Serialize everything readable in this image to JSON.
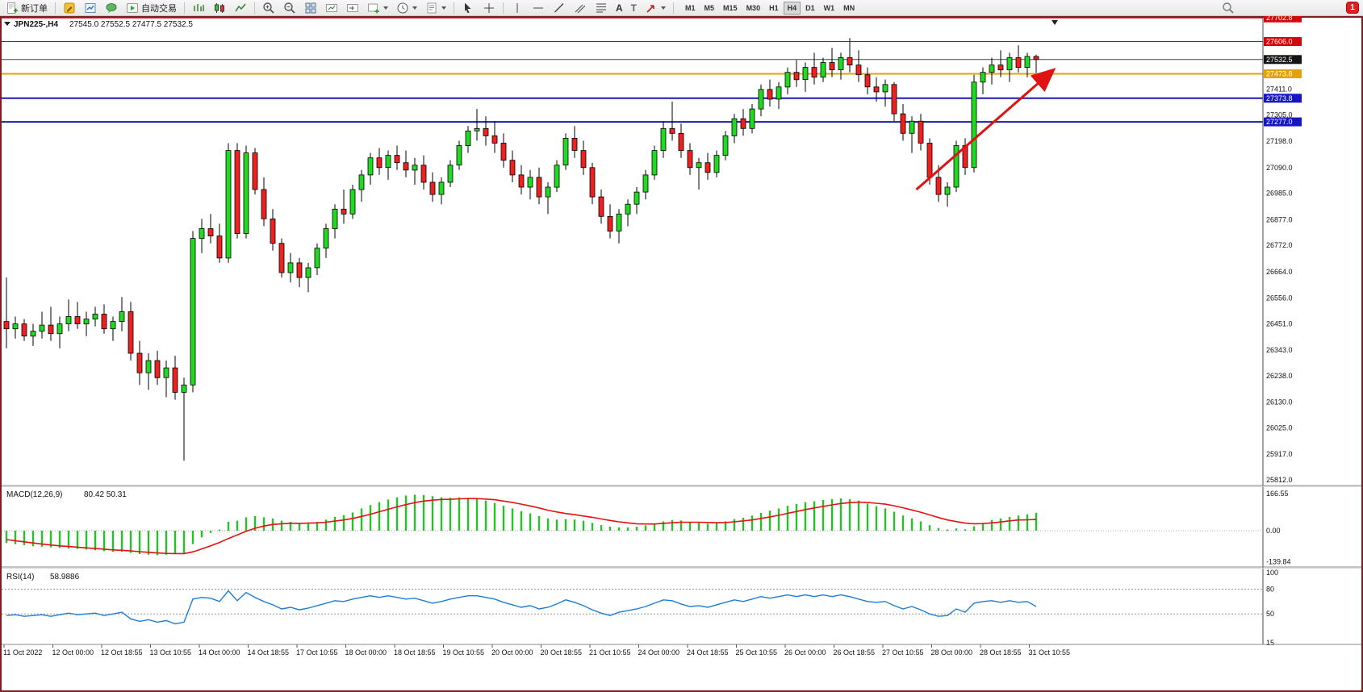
{
  "toolbar": {
    "new_order_label": "新订单",
    "autotrade_label": "自动交易",
    "text_tool_glyph": "A",
    "label_tool_glyph": "T",
    "timeframes": [
      "M1",
      "M5",
      "M15",
      "M30",
      "H1",
      "H4",
      "D1",
      "W1",
      "MN"
    ],
    "active_timeframe": "H4",
    "notification_count": "1"
  },
  "chart": {
    "title": "JPN225-,H4",
    "ohlc_line": "27545.0 27552.5 27477.5 27532.5",
    "macd_label": "MACD(12,26,9)",
    "macd_values": "80.42 50.31",
    "rsi_label": "RSI(14)",
    "rsi_value": "58.9886"
  },
  "chart_data": {
    "type": "candlestick",
    "symbol": "JPN225-",
    "timeframe": "H4",
    "last_ohlc": {
      "open": 27545.0,
      "high": 27552.5,
      "low": 27477.5,
      "close": 27532.5
    },
    "colors": {
      "up": "#21d921",
      "down": "#ef2020",
      "macd_hist": "#27c127",
      "macd_signal": "#e51212",
      "rsi": "#1d7dd4",
      "arrow": "#e11212"
    },
    "price_axis": {
      "gridlines": [
        {
          "label": "27411.0",
          "price": 27411.0
        },
        {
          "label": "27305.0",
          "price": 27305.0
        },
        {
          "label": "27198.0",
          "price": 27198.0
        },
        {
          "label": "27090.0",
          "price": 27090.0
        },
        {
          "label": "26985.0",
          "price": 26985.0
        },
        {
          "label": "26877.0",
          "price": 26877.0
        },
        {
          "label": "26772.0",
          "price": 26772.0
        },
        {
          "label": "26664.0",
          "price": 26664.0
        },
        {
          "label": "26556.0",
          "price": 26556.0
        },
        {
          "label": "26451.0",
          "price": 26451.0
        },
        {
          "label": "26343.0",
          "price": 26343.0
        },
        {
          "label": "26238.0",
          "price": 26238.0
        },
        {
          "label": "26130.0",
          "price": 26130.0
        },
        {
          "label": "26025.0",
          "price": 26025.0
        },
        {
          "label": "25917.0",
          "price": 25917.0
        },
        {
          "label": "25812.0",
          "price": 25812.0
        }
      ],
      "markers": [
        {
          "label": "27702.8",
          "price": 27702.8,
          "bg": "#d40808",
          "fg": "#ffffff"
        },
        {
          "label": "27606.0",
          "price": 27606.0,
          "bg": "#d40808",
          "fg": "#ffffff"
        },
        {
          "label": "27532.5",
          "price": 27532.5,
          "bg": "#141414",
          "fg": "#ffffff"
        },
        {
          "label": "27473.8",
          "price": 27473.8,
          "bg": "#e8a00a",
          "fg": "#ffffff"
        },
        {
          "label": "27373.8",
          "price": 27373.8,
          "bg": "#1616c8",
          "fg": "#ffffff"
        },
        {
          "label": "27277.0",
          "price": 27277.0,
          "bg": "#1616c8",
          "fg": "#ffffff"
        }
      ]
    },
    "hlines": [
      {
        "price": 27702.8,
        "color": "#cc0000",
        "width": 1
      },
      {
        "price": 27606.0,
        "color": "#cc0000",
        "width": 1
      },
      {
        "price": 27532.5,
        "color": "#444444",
        "width": 1
      },
      {
        "price": 27473.8,
        "color": "#e8a00a",
        "width": 2
      },
      {
        "price": 27373.8,
        "color": "#1818b4",
        "width": 2
      },
      {
        "price": 27277.0,
        "color": "#1818b4",
        "width": 2
      }
    ],
    "arrow": {
      "from_index": 102.5,
      "from_price": 27000,
      "to_index": 117.8,
      "to_price": 27485
    },
    "candles": [
      [
        26460,
        26640,
        26350,
        26430
      ],
      [
        26430,
        26480,
        26390,
        26450
      ],
      [
        26450,
        26470,
        26380,
        26400
      ],
      [
        26400,
        26450,
        26360,
        26420
      ],
      [
        26420,
        26500,
        26390,
        26445
      ],
      [
        26445,
        26520,
        26380,
        26410
      ],
      [
        26410,
        26480,
        26350,
        26450
      ],
      [
        26450,
        26550,
        26420,
        26480
      ],
      [
        26480,
        26540,
        26430,
        26450
      ],
      [
        26450,
        26500,
        26400,
        26470
      ],
      [
        26470,
        26520,
        26440,
        26490
      ],
      [
        26490,
        26530,
        26410,
        26430
      ],
      [
        26430,
        26480,
        26380,
        26460
      ],
      [
        26460,
        26560,
        26420,
        26500
      ],
      [
        26500,
        26540,
        26300,
        26330
      ],
      [
        26330,
        26380,
        26200,
        26250
      ],
      [
        26250,
        26330,
        26180,
        26300
      ],
      [
        26300,
        26340,
        26200,
        26230
      ],
      [
        26230,
        26300,
        26150,
        26270
      ],
      [
        26270,
        26320,
        26140,
        26170
      ],
      [
        26170,
        26230,
        25890,
        26200
      ],
      [
        26200,
        26830,
        26170,
        26800
      ],
      [
        26800,
        26880,
        26740,
        26840
      ],
      [
        26840,
        26900,
        26780,
        26810
      ],
      [
        26810,
        26860,
        26700,
        26720
      ],
      [
        26720,
        27190,
        26700,
        27160
      ],
      [
        27160,
        27190,
        26800,
        26820
      ],
      [
        26820,
        27180,
        26800,
        27150
      ],
      [
        27150,
        27170,
        26980,
        27000
      ],
      [
        27000,
        27050,
        26850,
        26880
      ],
      [
        26880,
        26920,
        26750,
        26780
      ],
      [
        26780,
        26800,
        26640,
        26660
      ],
      [
        26660,
        26740,
        26620,
        26700
      ],
      [
        26700,
        26720,
        26600,
        26640
      ],
      [
        26640,
        26700,
        26580,
        26680
      ],
      [
        26680,
        26780,
        26650,
        26760
      ],
      [
        26760,
        26860,
        26720,
        26840
      ],
      [
        26840,
        26940,
        26800,
        26920
      ],
      [
        26920,
        27000,
        26860,
        26900
      ],
      [
        26900,
        27020,
        26880,
        27000
      ],
      [
        27000,
        27080,
        26950,
        27060
      ],
      [
        27060,
        27150,
        27020,
        27130
      ],
      [
        27130,
        27170,
        27060,
        27090
      ],
      [
        27090,
        27160,
        27040,
        27140
      ],
      [
        27140,
        27180,
        27080,
        27110
      ],
      [
        27110,
        27160,
        27050,
        27080
      ],
      [
        27080,
        27130,
        27020,
        27100
      ],
      [
        27100,
        27140,
        27000,
        27030
      ],
      [
        27030,
        27070,
        26950,
        26980
      ],
      [
        26980,
        27050,
        26940,
        27030
      ],
      [
        27030,
        27120,
        27010,
        27100
      ],
      [
        27100,
        27200,
        27080,
        27180
      ],
      [
        27180,
        27260,
        27150,
        27240
      ],
      [
        27240,
        27330,
        27200,
        27250
      ],
      [
        27250,
        27300,
        27180,
        27220
      ],
      [
        27220,
        27280,
        27150,
        27190
      ],
      [
        27190,
        27230,
        27090,
        27120
      ],
      [
        27120,
        27160,
        27030,
        27060
      ],
      [
        27060,
        27100,
        26980,
        27010
      ],
      [
        27010,
        27080,
        26960,
        27050
      ],
      [
        27050,
        27090,
        26940,
        26970
      ],
      [
        26970,
        27030,
        26900,
        27010
      ],
      [
        27010,
        27120,
        26990,
        27100
      ],
      [
        27100,
        27230,
        27080,
        27210
      ],
      [
        27210,
        27260,
        27130,
        27160
      ],
      [
        27160,
        27200,
        27060,
        27090
      ],
      [
        27090,
        27110,
        26940,
        26970
      ],
      [
        26970,
        27000,
        26860,
        26890
      ],
      [
        26890,
        26940,
        26800,
        26830
      ],
      [
        26830,
        26920,
        26780,
        26900
      ],
      [
        26900,
        26960,
        26850,
        26940
      ],
      [
        26940,
        27010,
        26900,
        26990
      ],
      [
        26990,
        27080,
        26960,
        27060
      ],
      [
        27060,
        27180,
        27040,
        27160
      ],
      [
        27160,
        27280,
        27130,
        27250
      ],
      [
        27250,
        27360,
        27200,
        27230
      ],
      [
        27230,
        27270,
        27130,
        27160
      ],
      [
        27160,
        27190,
        27060,
        27090
      ],
      [
        27090,
        27130,
        27000,
        27110
      ],
      [
        27110,
        27150,
        27040,
        27070
      ],
      [
        27070,
        27160,
        27050,
        27140
      ],
      [
        27140,
        27240,
        27120,
        27220
      ],
      [
        27220,
        27310,
        27190,
        27290
      ],
      [
        27290,
        27330,
        27220,
        27250
      ],
      [
        27250,
        27350,
        27230,
        27330
      ],
      [
        27330,
        27430,
        27300,
        27410
      ],
      [
        27410,
        27450,
        27340,
        27370
      ],
      [
        27370,
        27440,
        27330,
        27420
      ],
      [
        27420,
        27500,
        27390,
        27480
      ],
      [
        27480,
        27530,
        27420,
        27450
      ],
      [
        27450,
        27520,
        27400,
        27500
      ],
      [
        27500,
        27560,
        27430,
        27460
      ],
      [
        27460,
        27540,
        27440,
        27520
      ],
      [
        27520,
        27580,
        27460,
        27490
      ],
      [
        27490,
        27560,
        27450,
        27540
      ],
      [
        27540,
        27620,
        27480,
        27510
      ],
      [
        27510,
        27570,
        27440,
        27470
      ],
      [
        27470,
        27500,
        27390,
        27420
      ],
      [
        27420,
        27460,
        27360,
        27400
      ],
      [
        27400,
        27450,
        27340,
        27430
      ],
      [
        27430,
        27440,
        27280,
        27310
      ],
      [
        27310,
        27350,
        27200,
        27230
      ],
      [
        27230,
        27300,
        27150,
        27280
      ],
      [
        27280,
        27310,
        27160,
        27190
      ],
      [
        27190,
        27210,
        27020,
        27050
      ],
      [
        27050,
        27100,
        26950,
        26980
      ],
      [
        26980,
        27030,
        26930,
        27010
      ],
      [
        27010,
        27200,
        26990,
        27180
      ],
      [
        27180,
        27210,
        27060,
        27090
      ],
      [
        27090,
        27470,
        27070,
        27440
      ],
      [
        27440,
        27500,
        27390,
        27480
      ],
      [
        27480,
        27540,
        27430,
        27510
      ],
      [
        27510,
        27570,
        27460,
        27490
      ],
      [
        27490,
        27560,
        27440,
        27540
      ],
      [
        27540,
        27590,
        27480,
        27500
      ],
      [
        27500,
        27560,
        27460,
        27545
      ],
      [
        27545,
        27552.5,
        27477.5,
        27532.5
      ]
    ],
    "time_labels": [
      "11 Oct 2022",
      "12 Oct 00:00",
      "12 Oct 18:55",
      "13 Oct 10:55",
      "14 Oct 00:00",
      "14 Oct 18:55",
      "17 Oct 10:55",
      "18 Oct 00:00",
      "18 Oct 18:55",
      "19 Oct 10:55",
      "20 Oct 00:00",
      "20 Oct 18:55",
      "21 Oct 10:55",
      "24 Oct 00:00",
      "24 Oct 18:55",
      "25 Oct 10:55",
      "26 Oct 00:00",
      "26 Oct 18:55",
      "27 Oct 10:55",
      "28 Oct 00:00",
      "28 Oct 18:55",
      "31 Oct 10:55"
    ],
    "macd": {
      "params": "12,26,9",
      "current": 80.42,
      "signal_current": 50.31,
      "axis_labels": [
        "166.55",
        "0.00",
        "-139.84"
      ],
      "histogram": [
        -55,
        -60,
        -65,
        -70,
        -72,
        -75,
        -78,
        -80,
        -82,
        -85,
        -88,
        -92,
        -95,
        -95,
        -100,
        -105,
        -108,
        -110,
        -108,
        -105,
        -100,
        -60,
        -30,
        -10,
        5,
        40,
        45,
        60,
        65,
        60,
        55,
        45,
        40,
        35,
        35,
        40,
        50,
        62,
        70,
        82,
        100,
        115,
        128,
        140,
        150,
        158,
        162,
        160,
        155,
        150,
        148,
        150,
        148,
        142,
        135,
        125,
        112,
        100,
        88,
        78,
        65,
        55,
        50,
        52,
        50,
        45,
        35,
        25,
        18,
        15,
        15,
        18,
        24,
        32,
        42,
        48,
        46,
        40,
        36,
        32,
        35,
        42,
        52,
        58,
        68,
        80,
        90,
        100,
        112,
        120,
        128,
        132,
        138,
        142,
        145,
        142,
        135,
        122,
        110,
        100,
        85,
        68,
        55,
        42,
        25,
        12,
        5,
        10,
        6,
        20,
        35,
        48,
        55,
        62,
        68,
        74,
        80.42
      ],
      "signal": [
        -40,
        -45,
        -50,
        -55,
        -60,
        -64,
        -68,
        -71,
        -74,
        -77,
        -80,
        -83,
        -86,
        -88,
        -91,
        -94,
        -97,
        -100,
        -102,
        -103,
        -103,
        -95,
        -82,
        -68,
        -53,
        -35,
        -19,
        -3,
        11,
        21,
        28,
        31,
        33,
        33,
        34,
        35,
        38,
        43,
        48,
        55,
        64,
        74,
        85,
        96,
        107,
        117,
        126,
        133,
        137,
        140,
        141,
        143,
        144,
        144,
        142,
        139,
        133,
        127,
        119,
        111,
        102,
        92,
        84,
        77,
        72,
        66,
        60,
        53,
        46,
        40,
        35,
        31,
        30,
        30,
        33,
        36,
        38,
        38,
        38,
        37,
        36,
        37,
        40,
        44,
        48,
        55,
        62,
        69,
        78,
        86,
        95,
        102,
        109,
        116,
        122,
        126,
        128,
        127,
        123,
        119,
        112,
        103,
        93,
        83,
        71,
        59,
        48,
        41,
        34,
        31,
        32,
        35,
        39,
        44,
        48,
        49,
        50.31
      ]
    },
    "rsi": {
      "period": 14,
      "current": 58.9886,
      "axis_labels": [
        "100",
        "80",
        "50",
        "15"
      ],
      "levels": [
        80,
        50
      ],
      "values": [
        48,
        49,
        47,
        48,
        49,
        47,
        49,
        51,
        49,
        50,
        51,
        48,
        50,
        52,
        44,
        41,
        43,
        40,
        42,
        38,
        40,
        68,
        70,
        69,
        65,
        78,
        66,
        76,
        70,
        65,
        61,
        56,
        58,
        55,
        57,
        60,
        63,
        66,
        65,
        68,
        70,
        72,
        70,
        72,
        70,
        68,
        69,
        66,
        63,
        65,
        68,
        70,
        72,
        72,
        70,
        68,
        64,
        61,
        58,
        60,
        56,
        58,
        62,
        67,
        64,
        60,
        55,
        51,
        48,
        52,
        54,
        56,
        59,
        63,
        67,
        66,
        62,
        59,
        60,
        58,
        61,
        64,
        67,
        65,
        68,
        71,
        69,
        71,
        73,
        71,
        73,
        71,
        73,
        71,
        73,
        71,
        68,
        65,
        64,
        65,
        60,
        56,
        59,
        55,
        50,
        47,
        48,
        56,
        52,
        63,
        65,
        66,
        64,
        66,
        64,
        65,
        58.99
      ]
    }
  }
}
